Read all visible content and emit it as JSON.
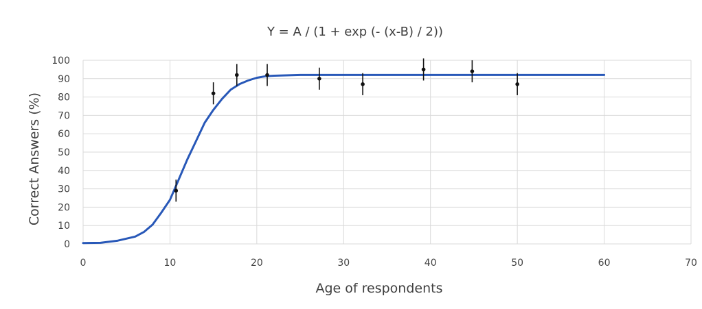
{
  "chart_data": {
    "type": "scatter",
    "title": "Y = A / (1 + exp (- (x-B) / 2))",
    "xlabel": "Age of respondents",
    "ylabel": "Correct Answers (%)",
    "xlim": [
      0,
      70
    ],
    "ylim": [
      0,
      100
    ],
    "x_ticks": [
      0,
      10,
      20,
      30,
      40,
      50,
      60,
      70
    ],
    "y_ticks": [
      0,
      10,
      20,
      30,
      40,
      50,
      60,
      70,
      80,
      90,
      100
    ],
    "grid": true,
    "points": [
      {
        "x": 10.7,
        "y": 29,
        "err_low": 23,
        "err_high": 35
      },
      {
        "x": 15.0,
        "y": 82,
        "err_low": 76,
        "err_high": 88
      },
      {
        "x": 17.7,
        "y": 92,
        "err_low": 86,
        "err_high": 98
      },
      {
        "x": 21.2,
        "y": 92,
        "err_low": 86,
        "err_high": 98
      },
      {
        "x": 27.2,
        "y": 90,
        "err_low": 84,
        "err_high": 96
      },
      {
        "x": 32.2,
        "y": 87,
        "err_low": 81,
        "err_high": 93
      },
      {
        "x": 39.2,
        "y": 95,
        "err_low": 89,
        "err_high": 101
      },
      {
        "x": 44.8,
        "y": 94,
        "err_low": 88,
        "err_high": 100
      },
      {
        "x": 50.0,
        "y": 87,
        "err_low": 81,
        "err_high": 93
      }
    ],
    "fit_curve": {
      "x": [
        0,
        2,
        4,
        6,
        7,
        8,
        9,
        10,
        11,
        12,
        13,
        14,
        15,
        16,
        17,
        18,
        19,
        20,
        21,
        22,
        25,
        30,
        40,
        50,
        60
      ],
      "y": [
        0.5,
        0.6,
        1.8,
        4,
        6.5,
        10.5,
        17,
        24,
        35,
        46,
        56,
        66,
        73,
        79,
        84,
        87,
        89,
        90.5,
        91.3,
        91.6,
        92,
        92,
        92,
        92,
        92
      ]
    },
    "colors": {
      "fit_line": "#2858b8",
      "points": "#111111",
      "grid": "#d9d9d9"
    }
  }
}
